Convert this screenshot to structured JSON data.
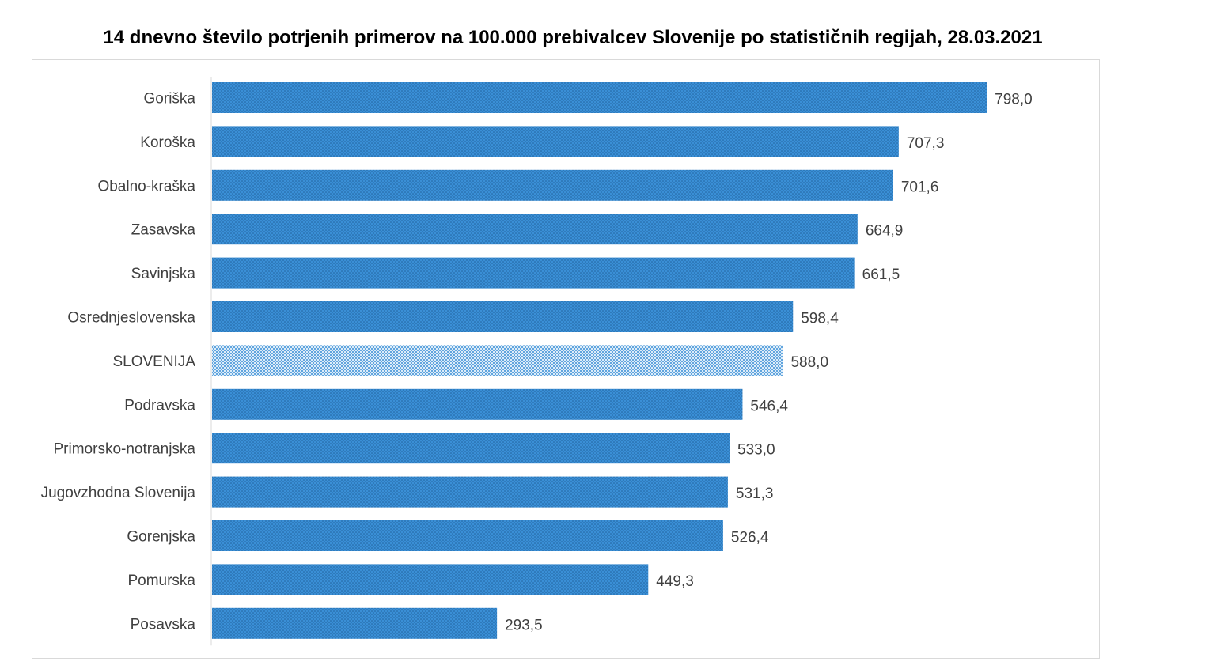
{
  "chart_data": {
    "type": "bar",
    "orientation": "horizontal",
    "title": "14 dnevno število potrjenih primerov na 100.000 prebivalcev Slovenije po statističnih regijah, 28.03.2021",
    "categories": [
      "Goriška",
      "Koroška",
      "Obalno-kraška",
      "Zasavska",
      "Savinjska",
      "Osrednjeslovenska",
      "SLOVENIJA",
      "Podravska",
      "Primorsko-notranjska",
      "Jugovzhodna Slovenija",
      "Gorenjska",
      "Pomurska",
      "Posavska"
    ],
    "values": [
      798.0,
      707.3,
      701.6,
      664.9,
      661.5,
      598.4,
      588.0,
      546.4,
      533.0,
      531.3,
      526.4,
      449.3,
      293.5
    ],
    "value_labels": [
      "798,0",
      "707,3",
      "701,6",
      "664,9",
      "661,5",
      "598,4",
      "588,0",
      "546,4",
      "533,0",
      "531,3",
      "526,4",
      "449,3",
      "293,5"
    ],
    "highlight_category": "SLOVENIJA",
    "xlim": [
      0,
      1000
    ],
    "grid": false,
    "legend": "none",
    "colors": {
      "bar": "#3a8fd6",
      "bar_dot": "#1f5f99",
      "highlight_bar": "#dcecf9",
      "highlight_dot": "#3a8fd6",
      "axis": "#d9d9d9",
      "label": "#404040"
    }
  }
}
